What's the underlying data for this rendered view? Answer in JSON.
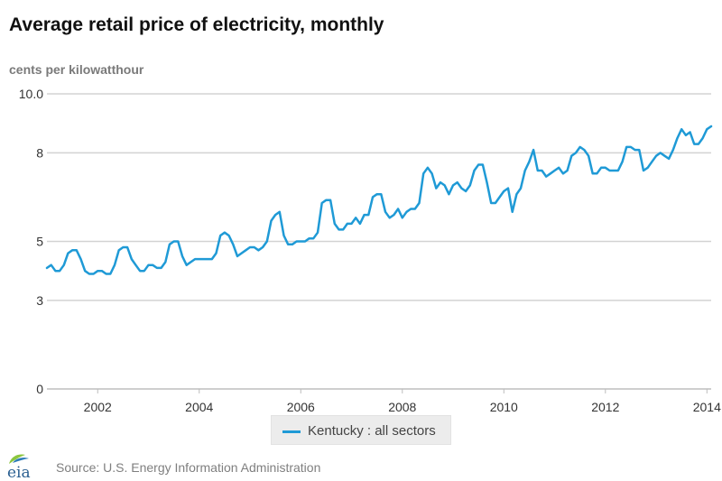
{
  "title": "Average retail price of electricity, monthly",
  "unit_label": "cents per kilowatthour",
  "source": "Source: U.S. Energy Information Administration",
  "logo_text": "eia",
  "colors": {
    "series": "#1f9ad6",
    "grid": "#d3d3d3",
    "axis_text": "#333333",
    "legend_bg": "#ececec",
    "logo_green": "#8cc63f",
    "logo_blue": "#2a7ab7"
  },
  "chart_data": {
    "type": "line",
    "xlabel": "",
    "ylabel": "cents per kilowatthour",
    "xlim": [
      "2001-01",
      "2014-02"
    ],
    "ylim": [
      0,
      10
    ],
    "y_ticks": [
      0,
      3,
      5,
      8,
      10
    ],
    "y_tick_labels": [
      "0",
      "3",
      "5",
      "8",
      "10.0"
    ],
    "x_ticks": [
      "2002-01",
      "2004-01",
      "2006-01",
      "2008-01",
      "2010-01",
      "2012-01",
      "2014-01"
    ],
    "x_tick_labels": [
      "2002",
      "2004",
      "2006",
      "2008",
      "2010",
      "2012",
      "2014"
    ],
    "grid": true,
    "legend_position": "bottom-center",
    "series": [
      {
        "name": "Kentucky : all sectors",
        "x": [
          "2001-01",
          "2001-02",
          "2001-03",
          "2001-04",
          "2001-05",
          "2001-06",
          "2001-07",
          "2001-08",
          "2001-09",
          "2001-10",
          "2001-11",
          "2001-12",
          "2002-01",
          "2002-02",
          "2002-03",
          "2002-04",
          "2002-05",
          "2002-06",
          "2002-07",
          "2002-08",
          "2002-09",
          "2002-10",
          "2002-11",
          "2002-12",
          "2003-01",
          "2003-02",
          "2003-03",
          "2003-04",
          "2003-05",
          "2003-06",
          "2003-07",
          "2003-08",
          "2003-09",
          "2003-10",
          "2003-11",
          "2003-12",
          "2004-01",
          "2004-02",
          "2004-03",
          "2004-04",
          "2004-05",
          "2004-06",
          "2004-07",
          "2004-08",
          "2004-09",
          "2004-10",
          "2004-11",
          "2004-12",
          "2005-01",
          "2005-02",
          "2005-03",
          "2005-04",
          "2005-05",
          "2005-06",
          "2005-07",
          "2005-08",
          "2005-09",
          "2005-10",
          "2005-11",
          "2005-12",
          "2006-01",
          "2006-02",
          "2006-03",
          "2006-04",
          "2006-05",
          "2006-06",
          "2006-07",
          "2006-08",
          "2006-09",
          "2006-10",
          "2006-11",
          "2006-12",
          "2007-01",
          "2007-02",
          "2007-03",
          "2007-04",
          "2007-05",
          "2007-06",
          "2007-07",
          "2007-08",
          "2007-09",
          "2007-10",
          "2007-11",
          "2007-12",
          "2008-01",
          "2008-02",
          "2008-03",
          "2008-04",
          "2008-05",
          "2008-06",
          "2008-07",
          "2008-08",
          "2008-09",
          "2008-10",
          "2008-11",
          "2008-12",
          "2009-01",
          "2009-02",
          "2009-03",
          "2009-04",
          "2009-05",
          "2009-06",
          "2009-07",
          "2009-08",
          "2009-09",
          "2009-10",
          "2009-11",
          "2009-12",
          "2010-01",
          "2010-02",
          "2010-03",
          "2010-04",
          "2010-05",
          "2010-06",
          "2010-07",
          "2010-08",
          "2010-09",
          "2010-10",
          "2010-11",
          "2010-12",
          "2011-01",
          "2011-02",
          "2011-03",
          "2011-04",
          "2011-05",
          "2011-06",
          "2011-07",
          "2011-08",
          "2011-09",
          "2011-10",
          "2011-11",
          "2011-12",
          "2012-01",
          "2012-02",
          "2012-03",
          "2012-04",
          "2012-05",
          "2012-06",
          "2012-07",
          "2012-08",
          "2012-09",
          "2012-10",
          "2012-11",
          "2012-12",
          "2013-01",
          "2013-02",
          "2013-03",
          "2013-04",
          "2013-05",
          "2013-06",
          "2013-07",
          "2013-08",
          "2013-09",
          "2013-10",
          "2013-11",
          "2013-12",
          "2014-01",
          "2014-02"
        ],
        "values": [
          4.1,
          4.2,
          4.0,
          4.0,
          4.2,
          4.6,
          4.7,
          4.7,
          4.4,
          4.0,
          3.9,
          3.9,
          4.0,
          4.0,
          3.9,
          3.9,
          4.2,
          4.7,
          4.8,
          4.8,
          4.4,
          4.2,
          4.0,
          4.0,
          4.2,
          4.2,
          4.1,
          4.1,
          4.3,
          4.9,
          5.0,
          5.0,
          4.5,
          4.2,
          4.3,
          4.4,
          4.4,
          4.4,
          4.4,
          4.4,
          4.6,
          5.2,
          5.3,
          5.2,
          4.9,
          4.5,
          4.6,
          4.7,
          4.8,
          4.8,
          4.7,
          4.8,
          5.0,
          5.7,
          5.9,
          6.0,
          5.2,
          4.9,
          4.9,
          5.0,
          5.0,
          5.0,
          5.1,
          5.1,
          5.3,
          6.3,
          6.4,
          6.4,
          5.6,
          5.4,
          5.4,
          5.6,
          5.6,
          5.8,
          5.6,
          5.9,
          5.9,
          6.5,
          6.6,
          6.6,
          6.0,
          5.8,
          5.9,
          6.1,
          5.8,
          6.0,
          6.1,
          6.1,
          6.3,
          7.3,
          7.5,
          7.3,
          6.8,
          7.0,
          6.9,
          6.6,
          6.9,
          7.0,
          6.8,
          6.7,
          6.9,
          7.4,
          7.6,
          7.6,
          7.0,
          6.3,
          6.3,
          6.5,
          6.7,
          6.8,
          6.0,
          6.6,
          6.8,
          7.4,
          7.7,
          8.1,
          7.4,
          7.4,
          7.2,
          7.3,
          7.4,
          7.5,
          7.3,
          7.4,
          7.9,
          8.0,
          8.2,
          8.1,
          7.9,
          7.3,
          7.3,
          7.5,
          7.5,
          7.4,
          7.4,
          7.4,
          7.7,
          8.2,
          8.2,
          8.1,
          8.1,
          7.4,
          7.5,
          7.7,
          7.9,
          8.0,
          7.9,
          7.8,
          8.1,
          8.5,
          8.8,
          8.6,
          8.7,
          8.3,
          8.3,
          8.5,
          8.8,
          8.9
        ]
      }
    ]
  }
}
